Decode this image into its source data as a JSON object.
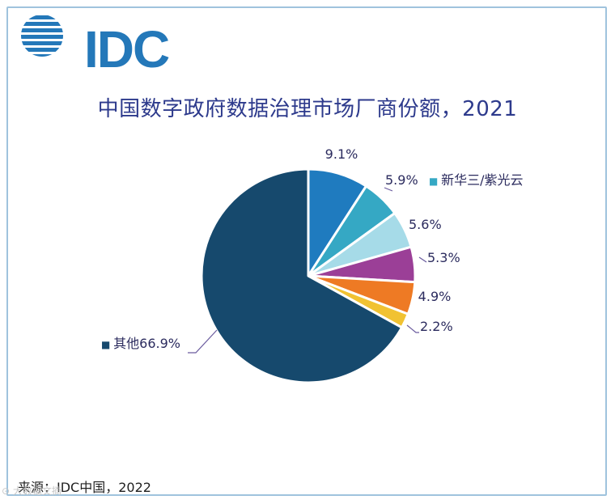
{
  "logo": {
    "text": "IDC",
    "color": "#2478b9"
  },
  "chart_data": {
    "type": "pie",
    "title": "中国数字政府数据治理市场厂商份额，2021",
    "start_angle_deg": 0,
    "direction": "clockwise",
    "slices": [
      {
        "label": "",
        "value": 9.1,
        "value_label": "9.1%",
        "color": "#1f7bbf"
      },
      {
        "label": "新华三/紫光云",
        "value": 5.9,
        "value_label": "5.9%",
        "color": "#35a8c4"
      },
      {
        "label": "",
        "value": 5.6,
        "value_label": "5.6%",
        "color": "#a6dbe8"
      },
      {
        "label": "",
        "value": 5.3,
        "value_label": "5.3%",
        "color": "#9b3f97"
      },
      {
        "label": "",
        "value": 4.9,
        "value_label": "4.9%",
        "color": "#ee7a24"
      },
      {
        "label": "",
        "value": 2.2,
        "value_label": "2.2%",
        "color": "#f1c232"
      },
      {
        "label": "其他",
        "value": 66.9,
        "value_label": "66.9%",
        "color": "#16496d"
      }
    ]
  },
  "source": "来源：IDC中国，2022",
  "watermark": "大数据文摘"
}
